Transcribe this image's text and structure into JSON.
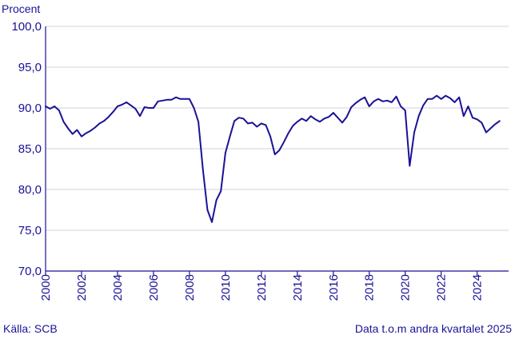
{
  "chart_data": {
    "type": "line",
    "ylabel": "Procent",
    "ylim": [
      70,
      100
    ],
    "xlim": [
      2000,
      2025.75
    ],
    "yticks": [
      "70,0",
      "75,0",
      "80,0",
      "85,0",
      "90,0",
      "95,0",
      "100,0"
    ],
    "xticks": [
      "2000",
      "2002",
      "2004",
      "2006",
      "2008",
      "2010",
      "2012",
      "2014",
      "2016",
      "2018",
      "2020",
      "2022",
      "2024"
    ],
    "grid": true,
    "line_color": "#1a1296",
    "series": [
      {
        "x": [
          2000.0,
          2000.25,
          2000.5,
          2000.75,
          2001.0,
          2001.25,
          2001.5,
          2001.75,
          2002.0,
          2002.25,
          2002.5,
          2002.75,
          2003.0,
          2003.25,
          2003.5,
          2003.75,
          2004.0,
          2004.25,
          2004.5,
          2004.75,
          2005.0,
          2005.25,
          2005.5,
          2005.75,
          2006.0,
          2006.25,
          2006.5,
          2006.75,
          2007.0,
          2007.25,
          2007.5,
          2007.75,
          2008.0,
          2008.25,
          2008.5,
          2008.75,
          2009.0,
          2009.25,
          2009.5,
          2009.75,
          2010.0,
          2010.25,
          2010.5,
          2010.75,
          2011.0,
          2011.25,
          2011.5,
          2011.75,
          2012.0,
          2012.25,
          2012.5,
          2012.75,
          2013.0,
          2013.25,
          2013.5,
          2013.75,
          2014.0,
          2014.25,
          2014.5,
          2014.75,
          2015.0,
          2015.25,
          2015.5,
          2015.75,
          2016.0,
          2016.25,
          2016.5,
          2016.75,
          2017.0,
          2017.25,
          2017.5,
          2017.75,
          2018.0,
          2018.25,
          2018.5,
          2018.75,
          2019.0,
          2019.25,
          2019.5,
          2019.75,
          2020.0,
          2020.25,
          2020.5,
          2020.75,
          2021.0,
          2021.25,
          2021.5,
          2021.75,
          2022.0,
          2022.25,
          2022.5,
          2022.75,
          2023.0,
          2023.25,
          2023.5,
          2023.75,
          2024.0,
          2024.25,
          2024.5,
          2024.75,
          2025.0,
          2025.25
        ],
        "values": [
          90.2,
          89.9,
          90.2,
          89.7,
          88.3,
          87.5,
          86.8,
          87.3,
          86.5,
          86.9,
          87.2,
          87.6,
          88.1,
          88.4,
          88.9,
          89.5,
          90.2,
          90.4,
          90.7,
          90.3,
          89.9,
          89.0,
          90.1,
          90.0,
          90.0,
          90.8,
          90.9,
          91.0,
          91.0,
          91.3,
          91.1,
          91.1,
          91.1,
          90.0,
          88.3,
          82.5,
          77.5,
          76.0,
          78.7,
          79.8,
          84.5,
          86.5,
          88.4,
          88.8,
          88.7,
          88.1,
          88.2,
          87.7,
          88.1,
          87.9,
          86.5,
          84.3,
          84.8,
          85.8,
          86.9,
          87.8,
          88.3,
          88.7,
          88.4,
          89.0,
          88.6,
          88.3,
          88.7,
          88.9,
          89.4,
          88.8,
          88.2,
          88.9,
          90.1,
          90.6,
          91.0,
          91.3,
          90.2,
          90.8,
          91.1,
          90.8,
          90.9,
          90.7,
          91.4,
          90.2,
          89.7,
          82.9,
          87.0,
          89.0,
          90.3,
          91.1,
          91.1,
          91.5,
          91.1,
          91.5,
          91.2,
          90.7,
          91.3,
          89.0,
          90.2,
          88.8,
          88.6,
          88.2,
          87.0,
          87.5,
          88.0,
          88.4
        ]
      }
    ]
  },
  "footer": {
    "source": "Källa: SCB",
    "note": "Data t.o.m andra kvartalet 2025"
  }
}
